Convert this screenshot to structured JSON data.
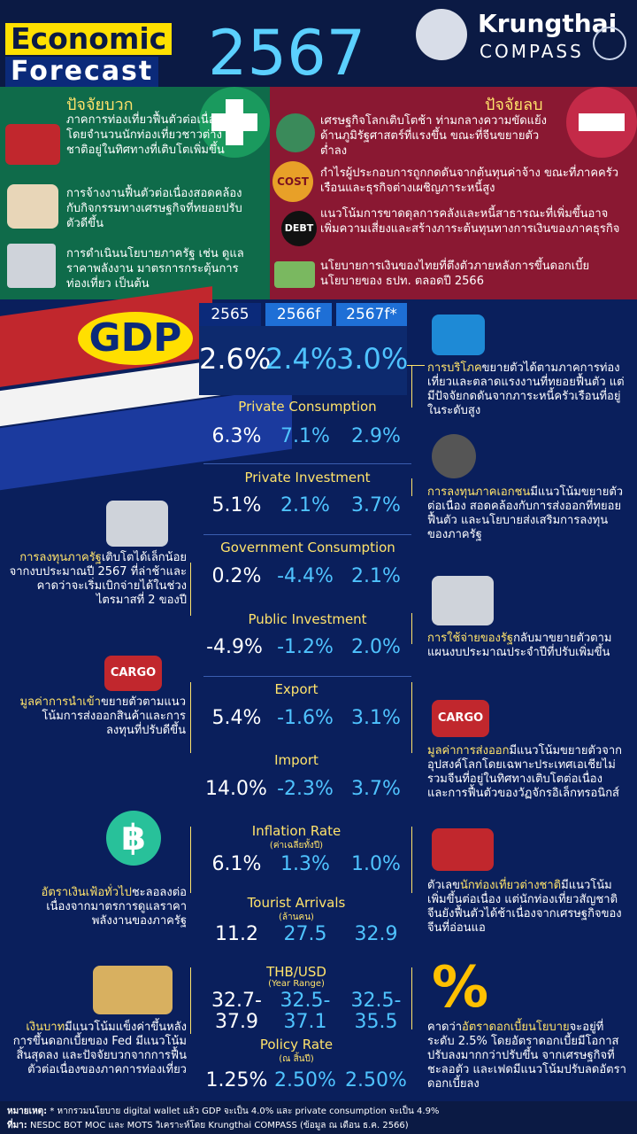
{
  "header": {
    "title_line1": "Economic",
    "title_line2": "Forecast",
    "year": "2567",
    "brand_name": "Krungthai",
    "brand_sub": "COMPASS"
  },
  "positive": {
    "heading": "ปัจจัยบวก",
    "items": [
      {
        "icon": "suitcase-icon",
        "text": "ภาคการท่องเที่ยวฟื้นตัวต่อเนื่อง โดยจำนวนนักท่องเที่ยวชาวต่างชาติอยู่ในทิศทางที่เติบโตเพิ่มขึ้น"
      },
      {
        "icon": "workers-icon",
        "text": "การจ้างงานฟื้นตัวต่อเนื่องสอดคล้องกับกิจกรรมทางเศรษฐกิจที่ทยอยปรับตัวดีขึ้น"
      },
      {
        "icon": "government-building-icon",
        "text": "การดำเนินนโยบายภาครัฐ เช่น ดูแลราคาพลังงาน มาตรการกระตุ้นการท่องเที่ยว เป็นต้น"
      }
    ]
  },
  "negative": {
    "heading": "ปัจจัยลบ",
    "items": [
      {
        "icon": "globe-down-icon",
        "text": "เศรษฐกิจโลกเติบโตช้า ท่ามกลางความขัดแย้ง ด้านภูมิรัฐศาสตร์ที่แรงขึ้น ขณะที่จีนขยายตัวต่ำลง"
      },
      {
        "icon": "cost-gauge-icon",
        "label": "COST",
        "text": "กำไรผู้ประกอบการถูกกดดันจากต้นทุนค่าจ้าง ขณะที่ภาคครัวเรือนและธุรกิจต่างเผชิญภาระหนี้สูง"
      },
      {
        "icon": "debt-icon",
        "label": "DEBT",
        "text": "แนวโน้มการขาดดุลการคลังและหนี้สาธารณะที่เพิ่มขึ้นอาจเพิ่มความเสี่ยงและสร้างภาระต้นทุนทางการเงินของภาคธุรกิจ"
      },
      {
        "icon": "money-hand-icon",
        "text": "นโยบายการเงินของไทยที่ตึงตัวภายหลังการขึ้นดอกเบี้ยนโยบายของ ธปท. ตลอดปี 2566"
      }
    ]
  },
  "table": {
    "columns": [
      "2565",
      "2566f",
      "2567f*"
    ],
    "gdp_label": "GDP",
    "gdp": [
      "2.6%",
      "2.4%",
      "3.0%"
    ],
    "rows": [
      {
        "label": "Private Consumption",
        "sub": "",
        "values": [
          "6.3%",
          "7.1%",
          "2.9%"
        ]
      },
      {
        "label": "Private Investment",
        "sub": "",
        "values": [
          "5.1%",
          "2.1%",
          "3.7%"
        ]
      },
      {
        "label": "Government Consumption",
        "sub": "",
        "values": [
          "0.2%",
          "-4.4%",
          "2.1%"
        ]
      },
      {
        "label": "Public Investment",
        "sub": "",
        "values": [
          "-4.9%",
          "-1.2%",
          "2.0%"
        ]
      },
      {
        "label": "Export",
        "sub": "",
        "values": [
          "5.4%",
          "-1.6%",
          "3.1%"
        ]
      },
      {
        "label": "Import",
        "sub": "",
        "values": [
          "14.0%",
          "-2.3%",
          "3.7%"
        ]
      },
      {
        "label": "Inflation Rate",
        "sub": "(ค่าเฉลี่ยทั้งปี)",
        "values": [
          "6.1%",
          "1.3%",
          "1.0%"
        ]
      },
      {
        "label": "Tourist Arrivals",
        "sub": "(ล้านคน)",
        "values": [
          "11.2",
          "27.5",
          "32.9"
        ]
      },
      {
        "label": "THB/USD",
        "sub": "(Year Range)",
        "values": [
          "32.7-\n37.9",
          "32.5-\n37.1",
          "32.5-\n35.5"
        ]
      },
      {
        "label": "Policy Rate",
        "sub": "(ณ สิ้นปี)",
        "values": [
          "1.25%",
          "2.50%",
          "2.50%"
        ]
      }
    ]
  },
  "notes": {
    "consumption": {
      "hl": "การบริโภค",
      "text": "ขยายตัวได้ตามภาคการท่องเที่ยวและตลาดแรงงานที่ทยอยฟื้นตัว แต่มีปัจจัยกดดันจากภาระหนี้ครัวเรือนที่อยู่ในระดับสูง"
    },
    "investment": {
      "hl": "การลงทุนภาคเอกชน",
      "text": "มีแนวโน้มขยายตัวต่อเนื่อง สอดคล้องกับการส่งออกที่ทยอยฟื้นตัว และนโยบายส่งเสริมการลงทุนของภาครัฐ"
    },
    "public_inv": {
      "hl": "การลงทุนภาครัฐ",
      "text": "เติบโตได้เล็กน้อยจากงบประมาณปี 2567 ที่ล่าช้าและคาดว่าจะเริ่มเบิกจ่ายได้ในช่วงไตรมาสที่ 2 ของปี"
    },
    "gov_spend": {
      "hl": "การใช้จ่ายของรัฐ",
      "text": "กลับมาขยายตัวตามแผนงบประมาณประจำปีที่ปรับเพิ่มขึ้น"
    },
    "import": {
      "hl": "มูลค่าการนำเข้า",
      "text": "ขยายตัวตามแนวโน้มการส่งออกสินค้าและการลงทุนที่ปรับดีขึ้น"
    },
    "export": {
      "hl": "มูลค่าการส่งออก",
      "text": "มีแนวโน้มขยายตัวจากอุปสงค์โลกโดยเฉพาะประเทศเอเชียไม่รวมจีนที่อยู่ในทิศทางเติบโตต่อเนื่อง และการฟื้นตัวของวัฏจักรอิเล็กทรอนิกส์"
    },
    "inflation": {
      "hl": "อัตราเงินเฟ้อทั่วไป",
      "text": "ชะลอลงต่อเนื่องจากมาตรการดูแลราคาพลังงานของภาครัฐ"
    },
    "tourist": {
      "pre": "ตัวเลข",
      "hl": "นักท่องเที่ยวต่างชาติ",
      "text": "มีแนวโน้มเพิ่มขึ้นต่อเนื่อง แต่นักท่องเที่ยวสัญชาติจีนยังฟื้นตัวได้ช้าเนื่องจากเศรษฐกิจของจีนที่อ่อนแอ"
    },
    "baht": {
      "hl": "เงินบาท",
      "text": "มีแนวโน้มแข็งค่าขึ้นหลังการขึ้นดอกเบี้ยของ Fed มีแนวโน้มสิ้นสุดลง และปัจจัยบวกจากการฟื้นตัวต่อเนื่องของภาคการท่องเที่ยว"
    },
    "policy": {
      "pre": "คาดว่า",
      "hl": "อัตราดอกเบี้ยนโยบาย",
      "text": "จะอยู่ที่ระดับ 2.5% โดยอัตราดอกเบี้ยมีโอกาสปรับลงมากกว่าปรับขึ้น จากเศรษฐกิจที่ชะลอตัว และเฟดมีแนวโน้มปรับลดอัตราดอกเบี้ยลง"
    }
  },
  "icons": {
    "cargo_label": "CARGO",
    "percent": "%"
  },
  "footer": {
    "remark_label": "หมายเหตุ:",
    "remark": "* หากรวมนโยบาย digital wallet แล้ว GDP จะเป็น 4.0% และ private consumption จะเป็น 4.9%",
    "source_label": "ที่มา:",
    "source": "NESDC BOT MOC และ MOTS วิเคราะห์โดย Krungthai COMPASS (ข้อมูล ณ เดือน ธ.ค. 2566)"
  },
  "colors": {
    "yellow": "#ffe36b",
    "cyan": "#4fc3ff",
    "navy": "#0a1f5c",
    "green": "#0f6b4a",
    "red": "#8a1832"
  }
}
